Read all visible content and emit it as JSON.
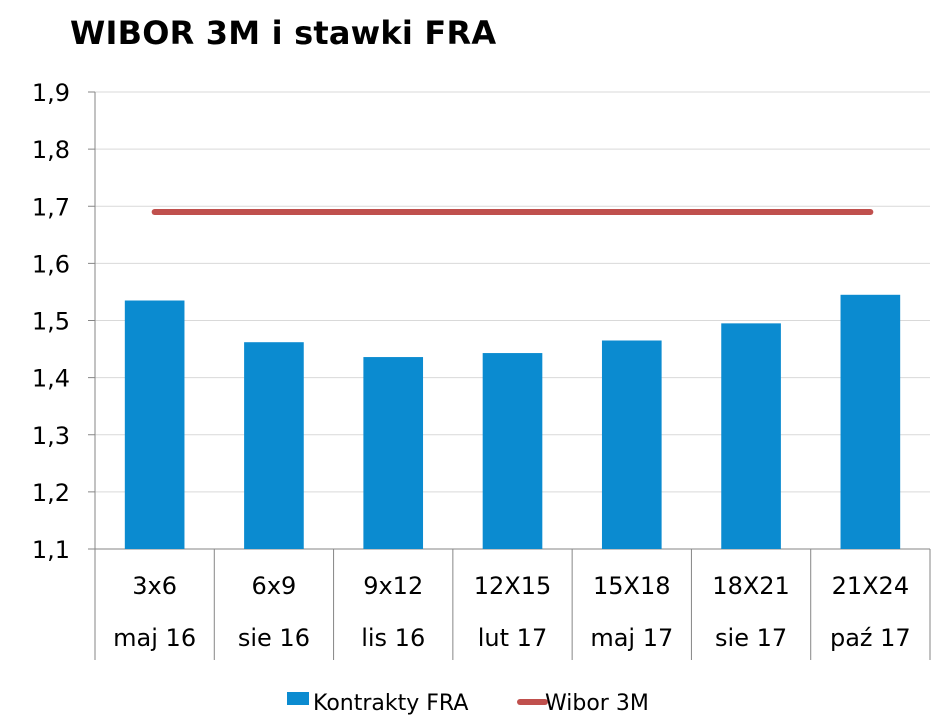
{
  "title": "WIBOR 3M i stawki FRA",
  "chart_data": {
    "type": "bar",
    "title": "WIBOR 3M i stawki FRA",
    "categories": [
      [
        "3x6",
        "maj 16"
      ],
      [
        "6x9",
        "sie 16"
      ],
      [
        "9x12",
        "lis 16"
      ],
      [
        "12X15",
        "lut 17"
      ],
      [
        "15X18",
        "maj 17"
      ],
      [
        "18X21",
        "sie 17"
      ],
      [
        "21X24",
        "paź 17"
      ]
    ],
    "series": [
      {
        "name": "Kontrakty FRA",
        "type": "bar",
        "color": "#0b8bd0",
        "values": [
          1.535,
          1.462,
          1.436,
          1.443,
          1.465,
          1.495,
          1.545
        ]
      },
      {
        "name": "Wibor 3M",
        "type": "line",
        "color": "#c0504d",
        "values": [
          1.69,
          1.69,
          1.69,
          1.69,
          1.69,
          1.69,
          1.69
        ]
      }
    ],
    "ylim": [
      1.1,
      1.9
    ],
    "yticks": [
      "1,1",
      "1,2",
      "1,3",
      "1,4",
      "1,5",
      "1,6",
      "1,7",
      "1,8",
      "1,9"
    ],
    "grid": true,
    "legend_position": "bottom"
  }
}
